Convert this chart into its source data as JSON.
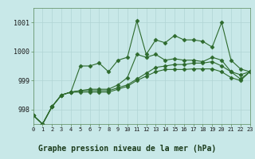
{
  "title": "Graphe pression niveau de la mer (hPa)",
  "bg_color": "#c8e8e8",
  "line_color": "#2d6a2d",
  "grid_color": "#b0d4d4",
  "series": [
    [
      997.8,
      997.5,
      998.1,
      998.5,
      998.6,
      999.5,
      999.5,
      999.6,
      999.3,
      999.7,
      999.8,
      1001.05,
      999.9,
      1000.4,
      1000.3,
      1000.55,
      1000.4,
      1000.4,
      1000.35,
      1000.15,
      1001.0,
      999.7,
      999.4,
      999.3
    ],
    [
      997.8,
      997.5,
      998.1,
      998.5,
      998.6,
      998.65,
      998.7,
      998.7,
      998.7,
      998.85,
      999.1,
      999.9,
      999.8,
      999.9,
      999.7,
      999.75,
      999.7,
      999.7,
      999.65,
      999.8,
      999.7,
      999.3,
      999.05,
      999.3
    ],
    [
      997.8,
      997.5,
      998.1,
      998.5,
      998.6,
      998.65,
      998.65,
      998.65,
      998.65,
      998.75,
      998.85,
      999.05,
      999.25,
      999.45,
      999.5,
      999.55,
      999.55,
      999.6,
      999.6,
      999.65,
      999.5,
      999.3,
      999.2,
      999.3
    ],
    [
      997.8,
      997.5,
      998.1,
      998.5,
      998.6,
      998.6,
      998.6,
      998.6,
      998.6,
      998.7,
      998.8,
      999.0,
      999.15,
      999.3,
      999.38,
      999.38,
      999.38,
      999.4,
      999.4,
      999.4,
      999.3,
      999.1,
      999.0,
      999.3
    ]
  ],
  "xlim": [
    0,
    23
  ],
  "ylim": [
    997.5,
    1001.5
  ],
  "yticks": [
    998,
    999,
    1000,
    1001
  ],
  "xticks": [
    0,
    1,
    2,
    3,
    4,
    5,
    6,
    7,
    8,
    9,
    10,
    11,
    12,
    13,
    14,
    15,
    16,
    17,
    18,
    19,
    20,
    21,
    22,
    23
  ]
}
